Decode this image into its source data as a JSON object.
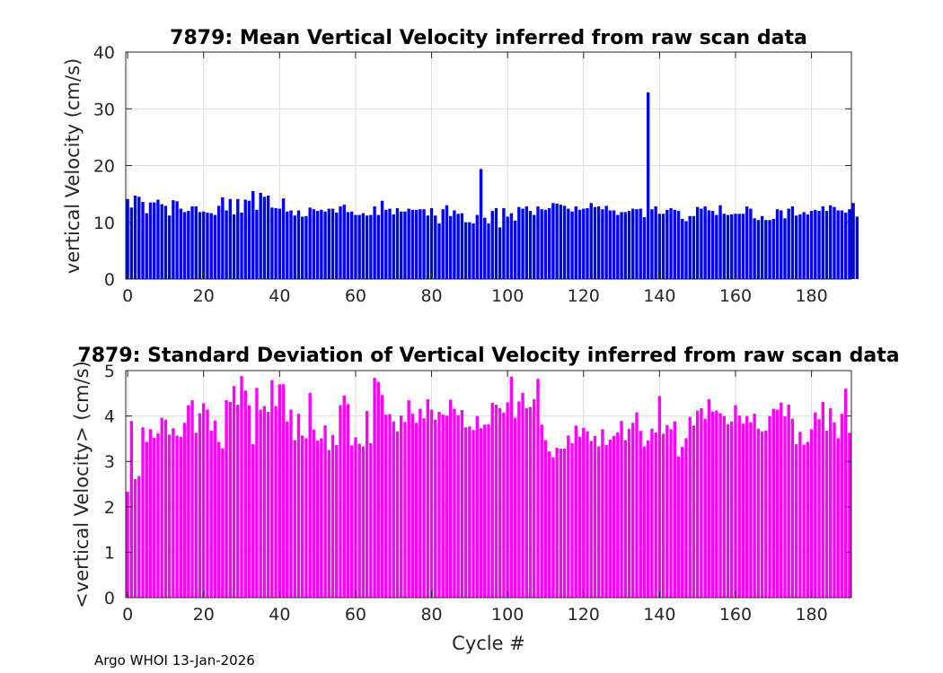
{
  "chart_data": [
    {
      "type": "bar",
      "title": "7879: Mean Vertical Velocity inferred from raw scan data",
      "xlabel": "",
      "ylabel": "vertical Velocity (cm/s)",
      "xlim": [
        -0.5,
        190.5
      ],
      "ylim": [
        0,
        40
      ],
      "xticks": [
        0,
        20,
        40,
        60,
        80,
        100,
        120,
        140,
        160,
        180
      ],
      "yticks": [
        0,
        10,
        20,
        30,
        40
      ],
      "grid": true,
      "color": "#0000ff",
      "x_start": 0,
      "values": [
        14.1,
        12.6,
        14.7,
        14.5,
        13.6,
        11.6,
        13.5,
        13.5,
        14.0,
        13.2,
        12.9,
        11.2,
        13.9,
        13.7,
        12.4,
        11.8,
        12.0,
        12.8,
        12.8,
        11.8,
        11.9,
        11.7,
        11.6,
        11.3,
        12.9,
        14.4,
        12.1,
        14.1,
        11.4,
        14.1,
        11.7,
        14.0,
        13.8,
        15.5,
        12.2,
        15.2,
        14.5,
        14.7,
        12.6,
        12.5,
        12.4,
        14.2,
        11.9,
        12.1,
        11.2,
        12.1,
        11.0,
        11.1,
        12.6,
        12.3,
        12.0,
        12.2,
        11.9,
        12.4,
        12.4,
        11.7,
        12.8,
        13.1,
        11.8,
        11.9,
        11.3,
        11.3,
        11.6,
        11.2,
        11.3,
        12.8,
        11.3,
        13.8,
        12.2,
        12.4,
        11.4,
        12.5,
        11.9,
        11.9,
        12.4,
        12.2,
        12.2,
        12.3,
        12.3,
        11.2,
        12.5,
        11.2,
        9.8,
        12.3,
        13.0,
        11.1,
        12.1,
        11.5,
        11.6,
        10.0,
        10.0,
        9.8,
        11.3,
        19.4,
        10.8,
        9.8,
        12.0,
        12.5,
        9.1,
        12.5,
        11.0,
        11.6,
        10.3,
        12.7,
        12.4,
        12.8,
        12.0,
        11.3,
        12.8,
        12.3,
        12.2,
        12.5,
        13.4,
        13.3,
        13.1,
        12.9,
        12.4,
        11.9,
        12.8,
        12.2,
        12.4,
        12.5,
        13.4,
        12.7,
        12.8,
        12.3,
        12.9,
        12.1,
        12.1,
        11.3,
        11.8,
        11.8,
        12.0,
        12.4,
        12.3,
        12.4,
        10.9,
        32.9,
        12.3,
        12.8,
        11.5,
        11.5,
        12.2,
        12.5,
        12.2,
        12.0,
        10.6,
        10.2,
        11.1,
        11.1,
        12.7,
        12.4,
        12.8,
        12.1,
        12.0,
        11.3,
        13.0,
        11.5,
        11.3,
        11.4,
        11.5,
        11.5,
        11.5,
        12.8,
        12.4,
        10.7,
        10.4,
        11.1,
        10.4,
        10.4,
        10.6,
        12.3,
        12.1,
        10.7,
        12.4,
        12.8,
        11.2,
        11.4,
        11.8,
        11.4,
        12.0,
        12.2,
        12.0,
        12.8,
        12.0,
        13.0,
        12.7,
        12.1,
        12.1,
        11.7,
        12.3,
        13.4,
        11.0
      ]
    },
    {
      "type": "bar",
      "title": "7879: Standard Deviation of Vertical Velocity inferred from raw scan data",
      "xlabel": "Cycle #",
      "ylabel": "<vertical Velocity> (cm/s)",
      "xlim": [
        -0.5,
        190.5
      ],
      "ylim": [
        0,
        5
      ],
      "xticks": [
        0,
        20,
        40,
        60,
        80,
        100,
        120,
        140,
        160,
        180
      ],
      "yticks": [
        0,
        1,
        2,
        3,
        4,
        5
      ],
      "grid": true,
      "color": "#ff00ff",
      "x_start": 0,
      "values": [
        2.33,
        3.89,
        2.61,
        2.68,
        3.75,
        3.43,
        3.71,
        3.52,
        3.62,
        3.96,
        3.92,
        3.59,
        3.73,
        3.57,
        3.54,
        3.85,
        4.24,
        4.35,
        3.63,
        4.06,
        4.28,
        4.14,
        3.68,
        3.9,
        3.43,
        3.29,
        4.35,
        4.31,
        4.66,
        4.25,
        4.88,
        4.56,
        4.24,
        3.38,
        4.62,
        4.14,
        4.22,
        4.09,
        4.79,
        4.22,
        4.7,
        4.7,
        3.88,
        4.14,
        3.47,
        4.05,
        3.57,
        3.51,
        4.51,
        3.7,
        3.46,
        3.51,
        3.79,
        3.25,
        3.58,
        3.36,
        4.24,
        4.45,
        4.26,
        3.35,
        3.53,
        3.39,
        3.33,
        4.11,
        3.4,
        4.84,
        4.75,
        4.46,
        4.03,
        4.04,
        3.88,
        3.66,
        4.01,
        3.87,
        4.35,
        4.05,
        3.85,
        4.16,
        3.95,
        4.37,
        4.14,
        3.92,
        4.09,
        4.03,
        4.01,
        4.36,
        4.16,
        4.02,
        4.13,
        3.75,
        3.77,
        3.69,
        4.0,
        3.73,
        3.81,
        3.82,
        4.29,
        4.25,
        4.17,
        4.07,
        4.3,
        4.87,
        3.96,
        4.32,
        4.51,
        4.17,
        4.2,
        4.37,
        4.82,
        3.81,
        3.47,
        3.22,
        3.09,
        3.3,
        3.28,
        3.28,
        3.57,
        3.4,
        3.79,
        3.54,
        3.74,
        3.66,
        3.45,
        3.56,
        3.33,
        3.71,
        3.36,
        3.48,
        3.56,
        3.64,
        3.89,
        3.47,
        3.72,
        3.85,
        4.08,
        3.67,
        3.33,
        3.46,
        3.72,
        3.64,
        4.44,
        3.61,
        3.8,
        3.71,
        3.88,
        3.11,
        3.32,
        3.51,
        3.98,
        3.79,
        4.12,
        4.17,
        3.94,
        4.37,
        4.1,
        4.12,
        4.06,
        4.0,
        3.82,
        3.88,
        4.24,
        4.01,
        3.83,
        4.0,
        3.86,
        4.05,
        3.72,
        3.66,
        3.68,
        4.0,
        4.16,
        4.14,
        4.29,
        3.99,
        4.25,
        3.94,
        3.38,
        3.65,
        3.37,
        3.43,
        3.71,
        4.08,
        3.93,
        4.31,
        3.68,
        4.17,
        3.86,
        3.51,
        4.05,
        4.6,
        3.63
      ]
    }
  ],
  "footer": "Argo WHOI 13-Jan-2026"
}
